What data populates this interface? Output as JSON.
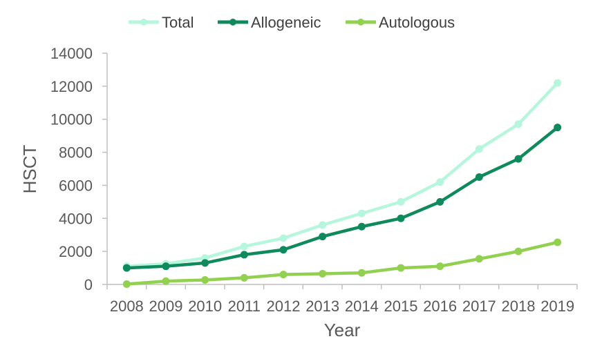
{
  "chart_data": {
    "type": "line",
    "title": "",
    "xlabel": "Year",
    "ylabel": "HSCT",
    "ylim": [
      0,
      14000
    ],
    "yticks": [
      0,
      2000,
      4000,
      6000,
      8000,
      10000,
      12000,
      14000
    ],
    "categories": [
      "2008",
      "2009",
      "2010",
      "2011",
      "2012",
      "2013",
      "2014",
      "2015",
      "2016",
      "2017",
      "2018",
      "2019"
    ],
    "legend_position": "top",
    "series": [
      {
        "name": "Total",
        "color": "#b6f6dc",
        "values": [
          1100,
          1250,
          1600,
          2300,
          2800,
          3600,
          4300,
          5000,
          6200,
          8200,
          9700,
          12200
        ]
      },
      {
        "name": "Allogeneic",
        "color": "#0e8a5c",
        "values": [
          1000,
          1100,
          1300,
          1800,
          2100,
          2900,
          3500,
          4000,
          5000,
          6500,
          7600,
          9500
        ]
      },
      {
        "name": "Autologous",
        "color": "#92d050",
        "values": [
          20,
          200,
          270,
          400,
          600,
          650,
          700,
          1000,
          1100,
          1550,
          2000,
          2550
        ]
      }
    ]
  }
}
